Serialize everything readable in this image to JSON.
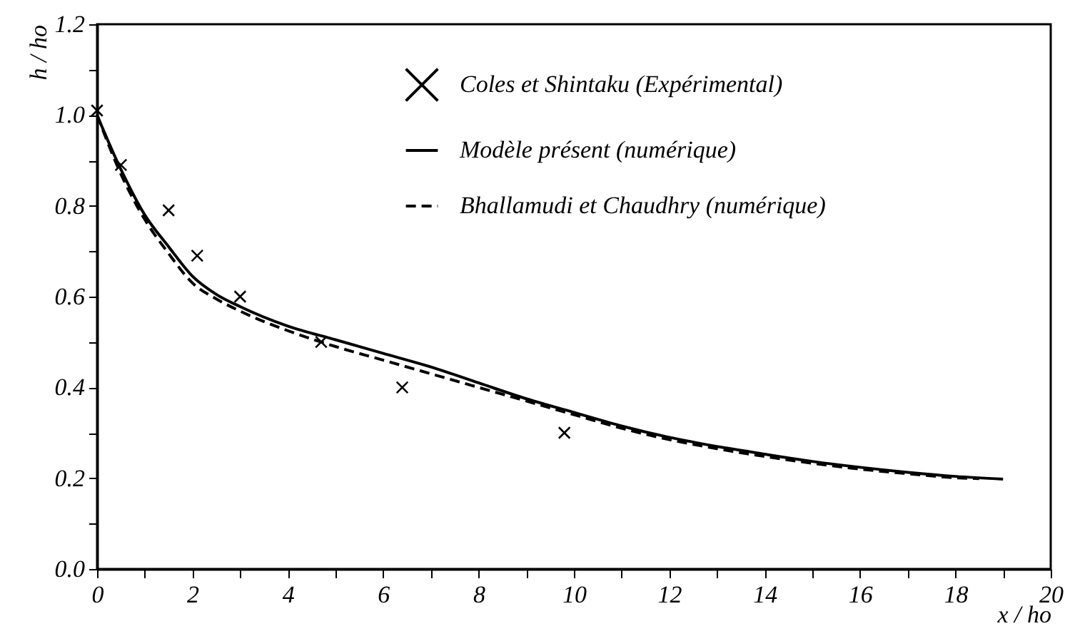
{
  "chart_data": {
    "type": "line",
    "xlabel": "x / ho",
    "ylabel": "h / ho",
    "xlim": [
      0,
      20
    ],
    "ylim": [
      0,
      1.2
    ],
    "xticks": [
      0,
      {
        "value": 1,
        "label": null
      },
      2,
      {
        "value": 3,
        "label": null
      },
      4,
      {
        "value": 5,
        "label": null
      },
      6,
      {
        "value": 7,
        "label": null
      },
      8,
      {
        "value": 9,
        "label": null
      },
      10,
      {
        "value": 11,
        "label": null
      },
      12,
      {
        "value": 13,
        "label": null
      },
      14,
      {
        "value": 15,
        "label": null
      },
      16,
      {
        "value": 17,
        "label": null
      },
      18,
      {
        "value": 19,
        "label": null
      },
      20
    ],
    "yticks": [
      {
        "value": 0,
        "label": "0.0"
      },
      {
        "value": 0.1,
        "label": null
      },
      0.2,
      {
        "value": 0.3,
        "label": null
      },
      0.4,
      {
        "value": 0.5,
        "label": null
      },
      0.6,
      {
        "value": 0.7,
        "label": null
      },
      0.8,
      {
        "value": 0.9,
        "label": null
      },
      {
        "value": 1,
        "label": "1.0"
      },
      {
        "value": 1.1,
        "label": null
      },
      1.2
    ],
    "grid": false,
    "legend": "top right",
    "series": [
      {
        "name": "Coles et Shintaku (Expérimental)",
        "type": "scatter",
        "marker": "cross",
        "color": "#000000",
        "x": [
          0,
          0.5,
          1.5,
          2.1,
          3.0,
          4.7,
          6.4,
          9.8
        ],
        "values": [
          1.01,
          0.89,
          0.79,
          0.69,
          0.6,
          0.5,
          0.4,
          0.3
        ]
      },
      {
        "name": "Modèle présent (numérique)",
        "line_style": "solid",
        "color": "#000000",
        "x": [
          0,
          0.5,
          1,
          1.5,
          2,
          2.5,
          3,
          4,
          5,
          6,
          7,
          8,
          9,
          10,
          11,
          12,
          13,
          14,
          15,
          16,
          17,
          18,
          19
        ],
        "values": [
          1.0,
          0.88,
          0.78,
          0.71,
          0.645,
          0.605,
          0.578,
          0.535,
          0.505,
          0.475,
          0.445,
          0.41,
          0.375,
          0.345,
          0.315,
          0.29,
          0.27,
          0.253,
          0.237,
          0.224,
          0.213,
          0.204,
          0.198
        ]
      },
      {
        "name": "Bhallamudi et Chaudhry (numérique)",
        "line_style": "dashed",
        "color": "#000000",
        "x": [
          0,
          0.5,
          1,
          1.5,
          2,
          2.5,
          3,
          4,
          5,
          6,
          7,
          8,
          9,
          10,
          11,
          12,
          13,
          14,
          15,
          16,
          17,
          18,
          18.5
        ],
        "values": [
          1.0,
          0.87,
          0.77,
          0.695,
          0.63,
          0.595,
          0.568,
          0.525,
          0.49,
          0.46,
          0.43,
          0.4,
          0.37,
          0.34,
          0.31,
          0.285,
          0.265,
          0.248,
          0.233,
          0.22,
          0.21,
          0.201,
          0.199
        ]
      }
    ]
  }
}
